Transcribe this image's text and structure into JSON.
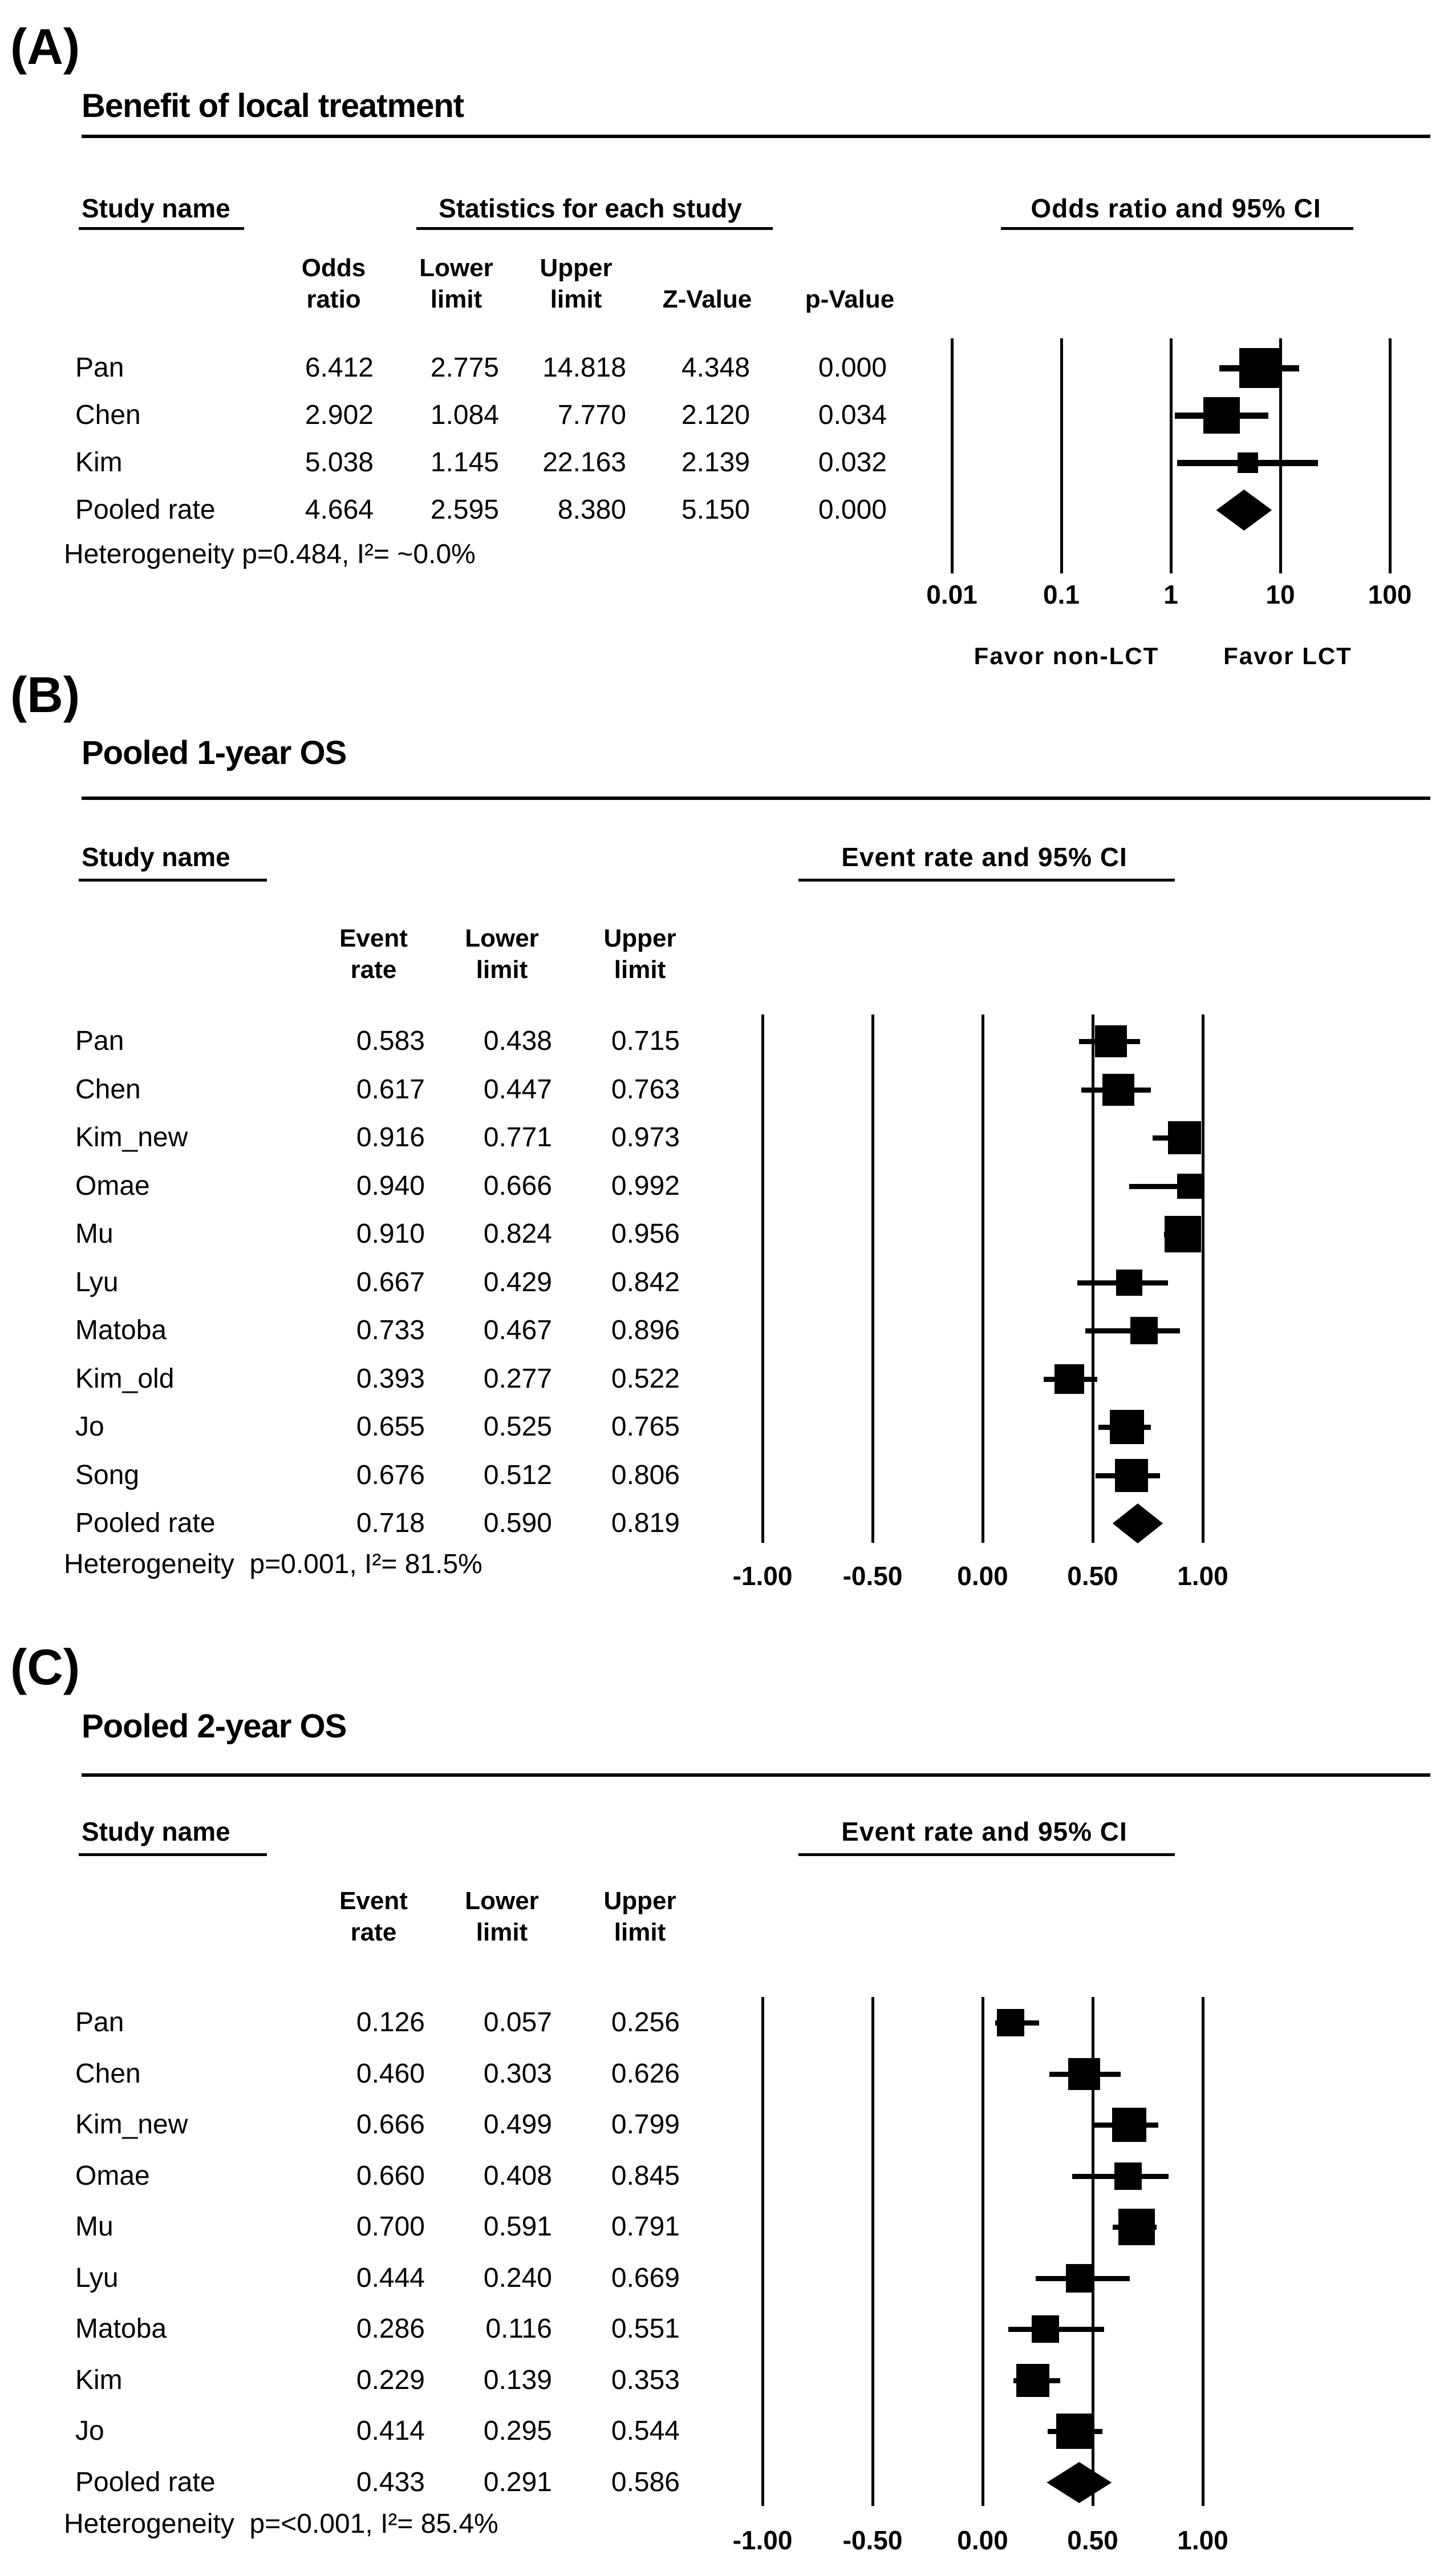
{
  "figure": {
    "background": "#ffffff",
    "ink": "#000000"
  },
  "chart_data": [
    {
      "type": "scatter",
      "subtype": "forest-plot",
      "panel_label": "(A)",
      "title": "Benefit of local treatment",
      "headers": {
        "study": "Study name",
        "stats": "Statistics for each study",
        "plot": "Odds ratio and 95% CI"
      },
      "columns": [
        {
          "line1": "Odds",
          "line2": "ratio"
        },
        {
          "line1": "Lower",
          "line2": "limit"
        },
        {
          "line1": "Upper",
          "line2": "limit"
        },
        {
          "line1": "",
          "line2": "Z-Value"
        },
        {
          "line1": "",
          "line2": "p-Value"
        }
      ],
      "rows": [
        {
          "name": "Pan",
          "cells": [
            "6.412",
            "2.775",
            "14.818",
            "4.348",
            "0.000"
          ],
          "est": 6.412,
          "lo": 2.775,
          "hi": 14.818,
          "marker": "square",
          "size": 70
        },
        {
          "name": "Chen",
          "cells": [
            "2.902",
            "1.084",
            "7.770",
            "2.120",
            "0.034"
          ],
          "est": 2.902,
          "lo": 1.084,
          "hi": 7.77,
          "marker": "square",
          "size": 64
        },
        {
          "name": "Kim",
          "cells": [
            "5.038",
            "1.145",
            "22.163",
            "2.139",
            "0.032"
          ],
          "est": 5.038,
          "lo": 1.145,
          "hi": 22.163,
          "marker": "square",
          "size": 36
        },
        {
          "name": "Pooled rate",
          "cells": [
            "4.664",
            "2.595",
            "8.380",
            "5.150",
            "0.000"
          ],
          "est": 4.664,
          "lo": 2.595,
          "hi": 8.38,
          "marker": "diamond",
          "size": 72
        }
      ],
      "heterogeneity": "Heterogeneity p=0.484, I²= ~0.0%",
      "axis": {
        "scale": "log",
        "ticks": [
          0.01,
          0.1,
          1,
          10,
          100
        ],
        "tick_labels": [
          "0.01",
          "0.1",
          "1",
          "10",
          "100"
        ],
        "range": [
          0.01,
          100
        ]
      },
      "footer_labels": [
        "Favor non-LCT",
        "Favor LCT"
      ]
    },
    {
      "type": "scatter",
      "subtype": "forest-plot",
      "panel_label": "(B)",
      "title": "Pooled 1-year OS",
      "headers": {
        "study": "Study name",
        "plot": "Event rate and 95% CI"
      },
      "columns": [
        {
          "line1": "Event",
          "line2": "rate"
        },
        {
          "line1": "Lower",
          "line2": "limit"
        },
        {
          "line1": "Upper",
          "line2": "limit"
        }
      ],
      "rows": [
        {
          "name": "Pan",
          "cells": [
            "0.583",
            "0.438",
            "0.715"
          ],
          "est": 0.583,
          "lo": 0.438,
          "hi": 0.715,
          "marker": "square",
          "size": 56
        },
        {
          "name": "Chen",
          "cells": [
            "0.617",
            "0.447",
            "0.763"
          ],
          "est": 0.617,
          "lo": 0.447,
          "hi": 0.763,
          "marker": "square",
          "size": 56
        },
        {
          "name": "Kim_new",
          "cells": [
            "0.916",
            "0.771",
            "0.973"
          ],
          "est": 0.916,
          "lo": 0.771,
          "hi": 0.973,
          "marker": "square",
          "size": 58
        },
        {
          "name": "Omae",
          "cells": [
            "0.940",
            "0.666",
            "0.992"
          ],
          "est": 0.94,
          "lo": 0.666,
          "hi": 0.992,
          "marker": "square",
          "size": 44
        },
        {
          "name": "Mu",
          "cells": [
            "0.910",
            "0.824",
            "0.956"
          ],
          "est": 0.91,
          "lo": 0.824,
          "hi": 0.956,
          "marker": "square",
          "size": 64
        },
        {
          "name": "Lyu",
          "cells": [
            "0.667",
            "0.429",
            "0.842"
          ],
          "est": 0.667,
          "lo": 0.429,
          "hi": 0.842,
          "marker": "square",
          "size": 46
        },
        {
          "name": "Matoba",
          "cells": [
            "0.733",
            "0.467",
            "0.896"
          ],
          "est": 0.733,
          "lo": 0.467,
          "hi": 0.896,
          "marker": "square",
          "size": 48
        },
        {
          "name": "Kim_old",
          "cells": [
            "0.393",
            "0.277",
            "0.522"
          ],
          "est": 0.393,
          "lo": 0.277,
          "hi": 0.522,
          "marker": "square",
          "size": 52
        },
        {
          "name": "Jo",
          "cells": [
            "0.655",
            "0.525",
            "0.765"
          ],
          "est": 0.655,
          "lo": 0.525,
          "hi": 0.765,
          "marker": "square",
          "size": 60
        },
        {
          "name": "Song",
          "cells": [
            "0.676",
            "0.512",
            "0.806"
          ],
          "est": 0.676,
          "lo": 0.512,
          "hi": 0.806,
          "marker": "square",
          "size": 58
        },
        {
          "name": "Pooled rate",
          "cells": [
            "0.718",
            "0.590",
            "0.819"
          ],
          "est": 0.718,
          "lo": 0.59,
          "hi": 0.819,
          "marker": "diamond",
          "size": 70
        }
      ],
      "heterogeneity": "Heterogeneity  p=0.001, I²= 81.5%",
      "axis": {
        "scale": "linear",
        "ticks": [
          -1.0,
          -0.5,
          0.0,
          0.5,
          1.0
        ],
        "tick_labels": [
          "-1.00",
          "-0.50",
          "0.00",
          "0.50",
          "1.00"
        ],
        "range": [
          -1.0,
          1.0
        ]
      },
      "footer_labels": []
    },
    {
      "type": "scatter",
      "subtype": "forest-plot",
      "panel_label": "(C)",
      "title": "Pooled 2-year OS",
      "headers": {
        "study": "Study name",
        "plot": "Event rate and 95% CI"
      },
      "columns": [
        {
          "line1": "Event",
          "line2": "rate"
        },
        {
          "line1": "Lower",
          "line2": "limit"
        },
        {
          "line1": "Upper",
          "line2": "limit"
        }
      ],
      "rows": [
        {
          "name": "Pan",
          "cells": [
            "0.126",
            "0.057",
            "0.256"
          ],
          "est": 0.126,
          "lo": 0.057,
          "hi": 0.256,
          "marker": "square",
          "size": 48
        },
        {
          "name": "Chen",
          "cells": [
            "0.460",
            "0.303",
            "0.626"
          ],
          "est": 0.46,
          "lo": 0.303,
          "hi": 0.626,
          "marker": "square",
          "size": 56
        },
        {
          "name": "Kim_new",
          "cells": [
            "0.666",
            "0.499",
            "0.799"
          ],
          "est": 0.666,
          "lo": 0.499,
          "hi": 0.799,
          "marker": "square",
          "size": 60
        },
        {
          "name": "Omae",
          "cells": [
            "0.660",
            "0.408",
            "0.845"
          ],
          "est": 0.66,
          "lo": 0.408,
          "hi": 0.845,
          "marker": "square",
          "size": 48
        },
        {
          "name": "Mu",
          "cells": [
            "0.700",
            "0.591",
            "0.791"
          ],
          "est": 0.7,
          "lo": 0.591,
          "hi": 0.791,
          "marker": "square",
          "size": 64
        },
        {
          "name": "Lyu",
          "cells": [
            "0.444",
            "0.240",
            "0.669"
          ],
          "est": 0.444,
          "lo": 0.24,
          "hi": 0.669,
          "marker": "square",
          "size": 50
        },
        {
          "name": "Matoba",
          "cells": [
            "0.286",
            "0.116",
            "0.551"
          ],
          "est": 0.286,
          "lo": 0.116,
          "hi": 0.551,
          "marker": "square",
          "size": 48
        },
        {
          "name": "Kim",
          "cells": [
            "0.229",
            "0.139",
            "0.353"
          ],
          "est": 0.229,
          "lo": 0.139,
          "hi": 0.353,
          "marker": "square",
          "size": 58
        },
        {
          "name": "Jo",
          "cells": [
            "0.414",
            "0.295",
            "0.544"
          ],
          "est": 0.414,
          "lo": 0.295,
          "hi": 0.544,
          "marker": "square",
          "size": 62
        },
        {
          "name": "Pooled rate",
          "cells": [
            "0.433",
            "0.291",
            "0.586"
          ],
          "est": 0.433,
          "lo": 0.291,
          "hi": 0.586,
          "marker": "diamond",
          "size": 72
        }
      ],
      "heterogeneity": "Heterogeneity  p=<0.001, I²= 85.4%",
      "axis": {
        "scale": "linear",
        "ticks": [
          -1.0,
          -0.5,
          0.0,
          0.5,
          1.0
        ],
        "tick_labels": [
          "-1.00",
          "-0.50",
          "0.00",
          "0.50",
          "1.00"
        ],
        "range": [
          -1.0,
          1.0
        ]
      },
      "footer_labels": []
    }
  ]
}
